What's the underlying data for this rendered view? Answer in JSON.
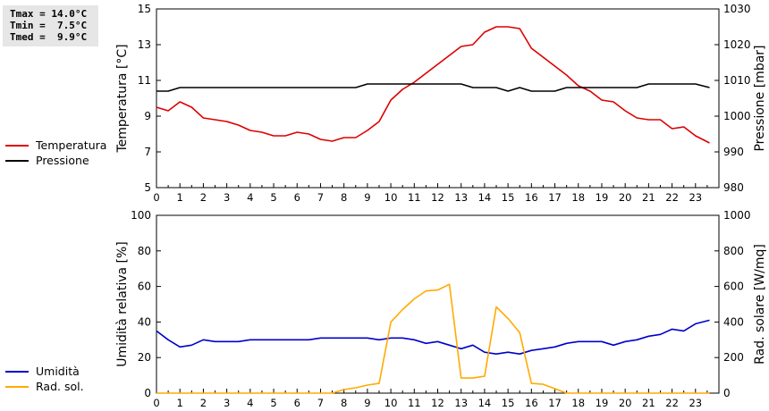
{
  "stats": {
    "tmax": "Tmax = 14.0°C",
    "tmin": "Tmin =  7.5°C",
    "tmed": "Tmed =  9.9°C"
  },
  "colors": {
    "temperatura": "#dd0000",
    "pressione": "#000000",
    "umidita": "#0000cc",
    "rad_sol": "#ffaa00"
  },
  "chart_data": [
    {
      "type": "line",
      "x_ticks": [
        "0",
        "1",
        "2",
        "3",
        "4",
        "5",
        "6",
        "7",
        "8",
        "9",
        "10",
        "11",
        "12",
        "13",
        "14",
        "15",
        "16",
        "17",
        "18",
        "19",
        "20",
        "21",
        "22",
        "23"
      ],
      "ylabel_left": "Temperatura [°C]",
      "ylabel_right": "Pressione [mbar]",
      "ylim_left": [
        5,
        15
      ],
      "ylim_right": [
        980,
        1030
      ],
      "yticks_left": [
        "5",
        "7",
        "9",
        "11",
        "13",
        "15"
      ],
      "yticks_right": [
        "980",
        "990",
        "1000",
        "1010",
        "1020",
        "1030"
      ],
      "legend_placement": "left",
      "grid": false,
      "series": [
        {
          "name": "Temperatura",
          "axis": "left",
          "points": [
            [
              0,
              9.5
            ],
            [
              0.5,
              9.3
            ],
            [
              1,
              9.8
            ],
            [
              1.5,
              9.5
            ],
            [
              2,
              8.9
            ],
            [
              2.5,
              8.8
            ],
            [
              3,
              8.7
            ],
            [
              3.5,
              8.5
            ],
            [
              4,
              8.2
            ],
            [
              4.5,
              8.1
            ],
            [
              5,
              7.9
            ],
            [
              5.5,
              7.9
            ],
            [
              6,
              8.1
            ],
            [
              6.5,
              8.0
            ],
            [
              7,
              7.7
            ],
            [
              7.5,
              7.6
            ],
            [
              8,
              7.8
            ],
            [
              8.5,
              7.8
            ],
            [
              9,
              8.2
            ],
            [
              9.5,
              8.7
            ],
            [
              10,
              9.9
            ],
            [
              10.5,
              10.5
            ],
            [
              11,
              10.9
            ],
            [
              11.5,
              11.4
            ],
            [
              12,
              11.9
            ],
            [
              12.5,
              12.4
            ],
            [
              13,
              12.9
            ],
            [
              13.5,
              13.0
            ],
            [
              14,
              13.7
            ],
            [
              14.5,
              14.0
            ],
            [
              15,
              14.0
            ],
            [
              15.5,
              13.9
            ],
            [
              16,
              12.8
            ],
            [
              16.5,
              12.3
            ],
            [
              17,
              11.8
            ],
            [
              17.5,
              11.3
            ],
            [
              18,
              10.7
            ],
            [
              18.5,
              10.4
            ],
            [
              19,
              9.9
            ],
            [
              19.5,
              9.8
            ],
            [
              20,
              9.3
            ],
            [
              20.5,
              8.9
            ],
            [
              21,
              8.8
            ],
            [
              21.5,
              8.8
            ],
            [
              22,
              8.3
            ],
            [
              22.5,
              8.4
            ],
            [
              23,
              7.9
            ],
            [
              23.6,
              7.5
            ]
          ]
        },
        {
          "name": "Pressione",
          "axis": "right",
          "points": [
            [
              0,
              1007
            ],
            [
              0.5,
              1007
            ],
            [
              1,
              1008
            ],
            [
              1.5,
              1008
            ],
            [
              2,
              1008
            ],
            [
              2.5,
              1008
            ],
            [
              3,
              1008
            ],
            [
              3.5,
              1008
            ],
            [
              4,
              1008
            ],
            [
              4.5,
              1008
            ],
            [
              5,
              1008
            ],
            [
              5.5,
              1008
            ],
            [
              6,
              1008
            ],
            [
              6.5,
              1008
            ],
            [
              7,
              1008
            ],
            [
              7.5,
              1008
            ],
            [
              8,
              1008
            ],
            [
              8.5,
              1008
            ],
            [
              9,
              1009
            ],
            [
              9.5,
              1009
            ],
            [
              10,
              1009
            ],
            [
              10.5,
              1009
            ],
            [
              11,
              1009
            ],
            [
              11.5,
              1009
            ],
            [
              12,
              1009
            ],
            [
              12.5,
              1009
            ],
            [
              13,
              1009
            ],
            [
              13.5,
              1008
            ],
            [
              14,
              1008
            ],
            [
              14.5,
              1008
            ],
            [
              15,
              1007
            ],
            [
              15.5,
              1008
            ],
            [
              16,
              1007
            ],
            [
              16.5,
              1007
            ],
            [
              17,
              1007
            ],
            [
              17.5,
              1008
            ],
            [
              18,
              1008
            ],
            [
              18.5,
              1008
            ],
            [
              19,
              1008
            ],
            [
              19.5,
              1008
            ],
            [
              20,
              1008
            ],
            [
              20.5,
              1008
            ],
            [
              21,
              1009
            ],
            [
              21.5,
              1009
            ],
            [
              22,
              1009
            ],
            [
              22.5,
              1009
            ],
            [
              23,
              1009
            ],
            [
              23.6,
              1008
            ]
          ]
        }
      ]
    },
    {
      "type": "line",
      "x_ticks": [
        "0",
        "1",
        "2",
        "3",
        "4",
        "5",
        "6",
        "7",
        "8",
        "9",
        "10",
        "11",
        "12",
        "13",
        "14",
        "15",
        "16",
        "17",
        "18",
        "19",
        "20",
        "21",
        "22",
        "23"
      ],
      "ylabel_left": "Umidità relativa [%]",
      "ylabel_right": "Rad. solare [W/mq]",
      "ylim_left": [
        0,
        100
      ],
      "ylim_right": [
        0,
        1000
      ],
      "yticks_left": [
        "0",
        "20",
        "40",
        "60",
        "80",
        "100"
      ],
      "yticks_right": [
        "0",
        "200",
        "400",
        "600",
        "800",
        "1000"
      ],
      "legend_placement": "left",
      "grid": false,
      "series": [
        {
          "name": "Umidità",
          "axis": "left",
          "points": [
            [
              0,
              35
            ],
            [
              0.5,
              30
            ],
            [
              1,
              26
            ],
            [
              1.5,
              27
            ],
            [
              2,
              30
            ],
            [
              2.5,
              29
            ],
            [
              3,
              29
            ],
            [
              3.5,
              29
            ],
            [
              4,
              30
            ],
            [
              4.5,
              30
            ],
            [
              5,
              30
            ],
            [
              5.5,
              30
            ],
            [
              6,
              30
            ],
            [
              6.5,
              30
            ],
            [
              7,
              31
            ],
            [
              7.5,
              31
            ],
            [
              8,
              31
            ],
            [
              8.5,
              31
            ],
            [
              9,
              31
            ],
            [
              9.5,
              30
            ],
            [
              10,
              31
            ],
            [
              10.5,
              31
            ],
            [
              11,
              30
            ],
            [
              11.5,
              28
            ],
            [
              12,
              29
            ],
            [
              12.5,
              27
            ],
            [
              13,
              25
            ],
            [
              13.5,
              27
            ],
            [
              14,
              23
            ],
            [
              14.5,
              22
            ],
            [
              15,
              23
            ],
            [
              15.5,
              22
            ],
            [
              16,
              24
            ],
            [
              16.5,
              25
            ],
            [
              17,
              26
            ],
            [
              17.5,
              28
            ],
            [
              18,
              29
            ],
            [
              18.5,
              29
            ],
            [
              19,
              29
            ],
            [
              19.5,
              27
            ],
            [
              20,
              29
            ],
            [
              20.5,
              30
            ],
            [
              21,
              32
            ],
            [
              21.5,
              33
            ],
            [
              22,
              36
            ],
            [
              22.5,
              35
            ],
            [
              23,
              39
            ],
            [
              23.6,
              41
            ]
          ]
        },
        {
          "name": "Rad. sol.",
          "axis": "right",
          "points": [
            [
              0,
              0
            ],
            [
              0.5,
              0
            ],
            [
              1,
              0
            ],
            [
              2,
              0
            ],
            [
              3,
              0
            ],
            [
              4,
              0
            ],
            [
              5,
              0
            ],
            [
              6,
              0
            ],
            [
              7,
              0
            ],
            [
              7.5,
              0
            ],
            [
              8,
              20
            ],
            [
              8.5,
              30
            ],
            [
              9,
              45
            ],
            [
              9.5,
              55
            ],
            [
              10,
              400
            ],
            [
              10.5,
              470
            ],
            [
              11,
              530
            ],
            [
              11.5,
              575
            ],
            [
              12,
              580
            ],
            [
              12.5,
              612
            ],
            [
              13,
              85
            ],
            [
              13.5,
              85
            ],
            [
              14,
              95
            ],
            [
              14.5,
              485
            ],
            [
              15,
              420
            ],
            [
              15.5,
              340
            ],
            [
              16,
              55
            ],
            [
              16.5,
              50
            ],
            [
              17,
              25
            ],
            [
              17.5,
              0
            ],
            [
              18,
              0
            ],
            [
              19,
              0
            ],
            [
              20,
              0
            ],
            [
              21,
              0
            ],
            [
              22,
              0
            ],
            [
              23,
              0
            ],
            [
              23.6,
              0
            ]
          ]
        }
      ]
    }
  ]
}
